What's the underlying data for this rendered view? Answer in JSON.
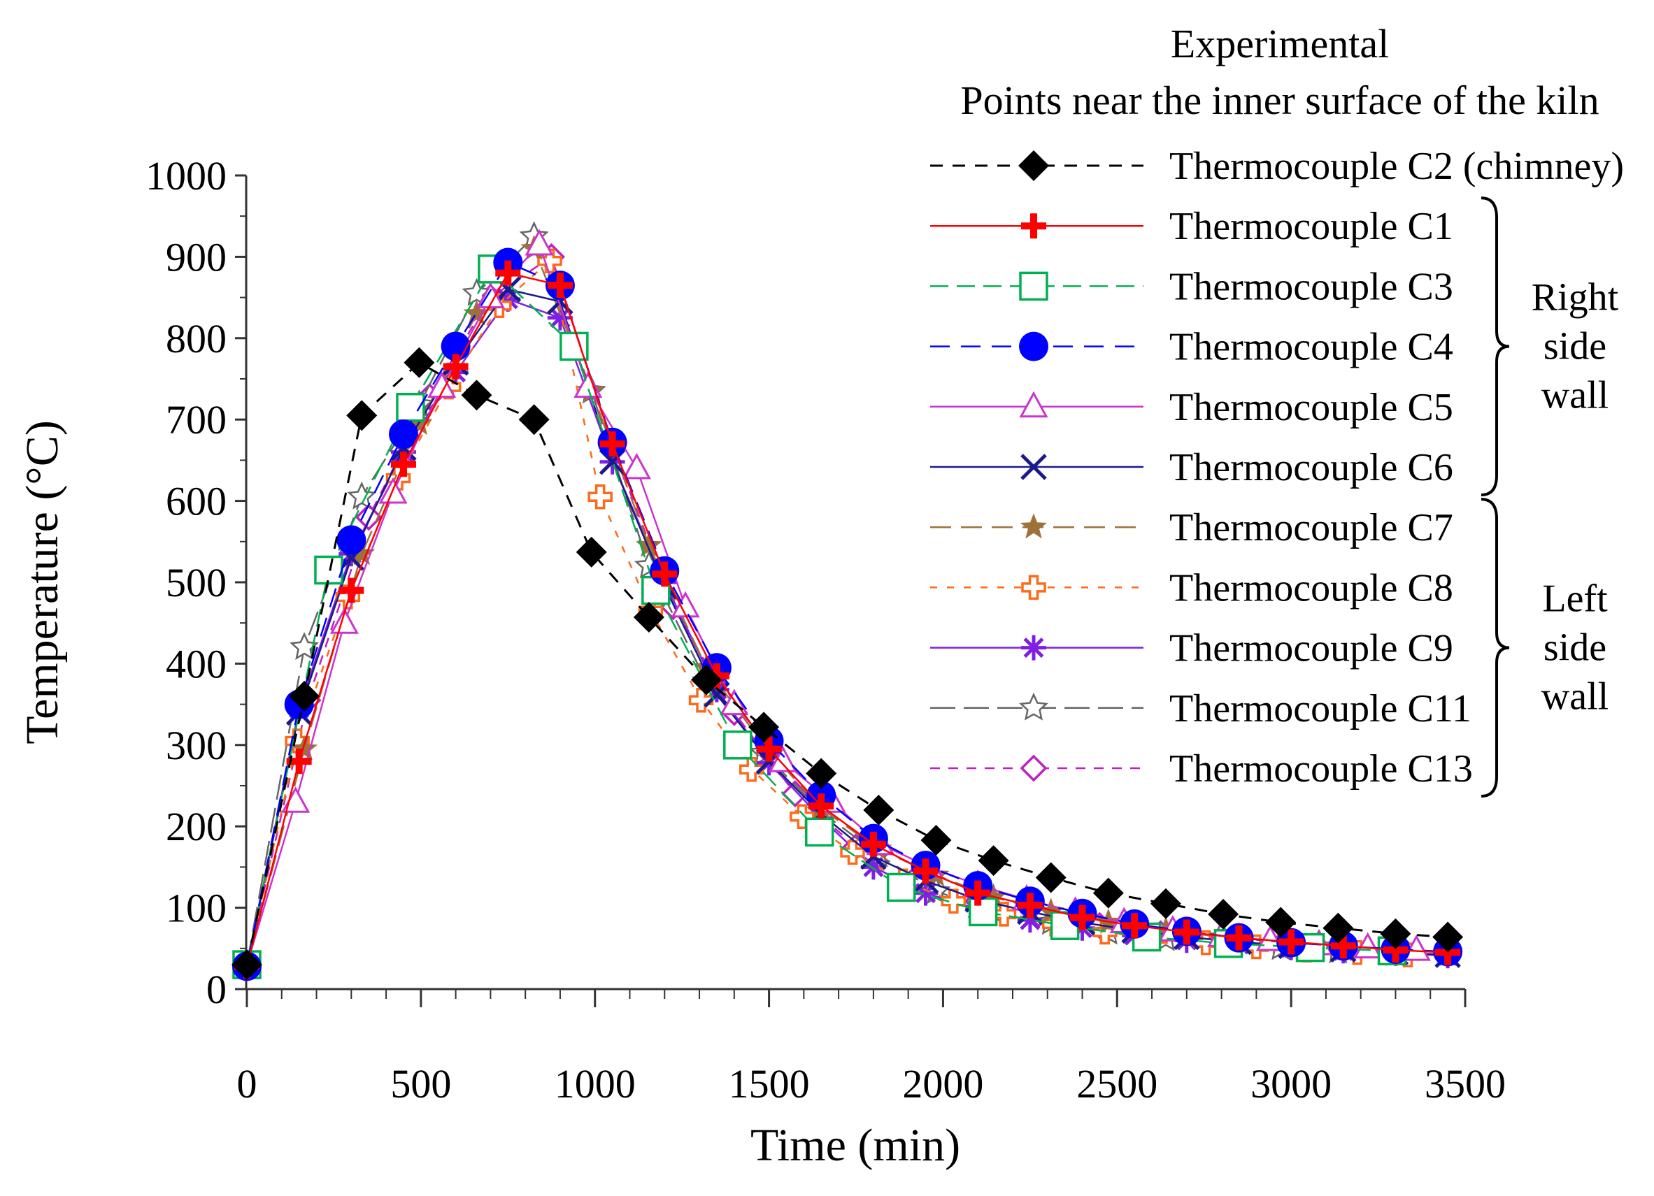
{
  "chart_data": {
    "type": "line",
    "title": "",
    "xlabel": "Time (min)",
    "ylabel": "Temperature (°C)",
    "xlim": [
      -50,
      3500
    ],
    "ylim": [
      0,
      1000
    ],
    "xticks": [
      0,
      500,
      1000,
      1500,
      2000,
      2500,
      3000,
      3500
    ],
    "yticks": [
      0,
      100,
      200,
      300,
      400,
      500,
      600,
      700,
      800,
      900,
      1000
    ],
    "legend_title_1": "Experimental",
    "legend_title_2": "Points near the inner surface of the kiln",
    "groups": [
      {
        "label_lines": [
          "Right",
          "side",
          "wall"
        ],
        "series": [
          "Thermocouple C1",
          "Thermocouple C6"
        ]
      },
      {
        "label_lines": [
          "Left",
          "side",
          "wall"
        ],
        "series": [
          "Thermocouple C7",
          "Thermocouple C13"
        ]
      }
    ],
    "series": [
      {
        "name": "Thermocouple C2 (chimney)",
        "color": "#000000",
        "marker": "diamond-filled",
        "dash": "18 14",
        "x": [
          0,
          165,
          330,
          495,
          660,
          825,
          990,
          1155,
          1320,
          1485,
          1650,
          1815,
          1980,
          2145,
          2310,
          2475,
          2640,
          2805,
          2970,
          3135,
          3300,
          3450
        ],
        "y": [
          30,
          360,
          705,
          770,
          730,
          700,
          537,
          457,
          380,
          322,
          265,
          220,
          183,
          158,
          137,
          118,
          105,
          92,
          82,
          75,
          68,
          64
        ]
      },
      {
        "name": "Thermocouple C1",
        "color": "#ff0000",
        "marker": "plus-thick",
        "dash": "",
        "x": [
          0,
          150,
          300,
          450,
          600,
          750,
          900,
          1050,
          1200,
          1350,
          1500,
          1650,
          1800,
          1950,
          2100,
          2250,
          2400,
          2550,
          2700,
          2850,
          3000,
          3150,
          3300,
          3450
        ],
        "y": [
          28,
          280,
          490,
          645,
          765,
          880,
          865,
          670,
          510,
          385,
          295,
          225,
          178,
          145,
          118,
          103,
          88,
          78,
          70,
          63,
          58,
          53,
          48,
          45
        ]
      },
      {
        "name": "Thermocouple C3",
        "color": "#00b050",
        "marker": "square-open",
        "dash": "26 12",
        "x": [
          0,
          235,
          470,
          705,
          940,
          1175,
          1410,
          1645,
          1880,
          2115,
          2350,
          2585,
          2820,
          3055,
          3290
        ],
        "y": [
          30,
          515,
          715,
          885,
          790,
          490,
          300,
          193,
          125,
          95,
          78,
          64,
          56,
          51,
          47
        ]
      },
      {
        "name": "Thermocouple C4",
        "color": "#0000ff",
        "marker": "circle-filled",
        "dash": "28 16",
        "x": [
          0,
          150,
          300,
          450,
          600,
          750,
          900,
          1050,
          1200,
          1350,
          1500,
          1650,
          1800,
          1950,
          2100,
          2250,
          2400,
          2550,
          2700,
          2850,
          3000,
          3150,
          3300,
          3450
        ],
        "y": [
          28,
          350,
          552,
          682,
          790,
          893,
          865,
          672,
          514,
          395,
          305,
          238,
          185,
          152,
          127,
          108,
          93,
          80,
          71,
          63,
          57,
          53,
          49,
          46
        ]
      },
      {
        "name": "Thermocouple C5",
        "color": "#cc33cc",
        "marker": "triangle-open",
        "dash": "",
        "x": [
          0,
          140,
          280,
          420,
          560,
          700,
          840,
          980,
          1120,
          1260,
          1400,
          1540,
          1680,
          1820,
          1960,
          2100,
          2240,
          2380,
          2520,
          2660,
          2800,
          2940,
          3080,
          3220,
          3360
        ],
        "y": [
          30,
          230,
          450,
          610,
          740,
          850,
          915,
          740,
          640,
          470,
          350,
          280,
          230,
          178,
          150,
          128,
          110,
          95,
          82,
          72,
          65,
          60,
          55,
          51,
          48
        ]
      },
      {
        "name": "Thermocouple C6",
        "color": "#1a1a8c",
        "marker": "x-cross",
        "dash": "",
        "x": [
          0,
          150,
          300,
          450,
          600,
          750,
          900,
          1050,
          1200,
          1350,
          1500,
          1650,
          1800,
          1950,
          2100,
          2250,
          2400,
          2550,
          2700,
          2850,
          3000,
          3150,
          3300,
          3450
        ],
        "y": [
          28,
          340,
          530,
          665,
          770,
          860,
          845,
          648,
          495,
          362,
          280,
          215,
          163,
          133,
          110,
          95,
          82,
          72,
          64,
          58,
          53,
          49,
          45,
          42
        ]
      },
      {
        "name": "Thermocouple C7",
        "color": "#a0703a",
        "marker": "star-filled",
        "dash": "30 14",
        "x": [
          0,
          165,
          330,
          495,
          660,
          825,
          990,
          1155,
          1320,
          1485,
          1650,
          1815,
          1980,
          2145,
          2310,
          2475,
          2640,
          2805,
          2970,
          3135,
          3300
        ],
        "y": [
          30,
          295,
          535,
          695,
          830,
          910,
          735,
          545,
          395,
          300,
          222,
          172,
          140,
          113,
          95,
          82,
          72,
          64,
          58,
          53,
          49
        ]
      },
      {
        "name": "Thermocouple C8",
        "color": "#ff6a1a",
        "marker": "plus-open",
        "dash": "10 14",
        "x": [
          0,
          145,
          290,
          435,
          580,
          725,
          870,
          1015,
          1160,
          1305,
          1450,
          1595,
          1740,
          1885,
          2030,
          2175,
          2320,
          2465,
          2610,
          2755,
          2900,
          3045,
          3190,
          3335
        ],
        "y": [
          30,
          305,
          482,
          628,
          740,
          840,
          895,
          605,
          465,
          355,
          270,
          212,
          168,
          133,
          108,
          92,
          80,
          70,
          62,
          57,
          52,
          48,
          45,
          42
        ]
      },
      {
        "name": "Thermocouple C9",
        "color": "#7f20e0",
        "marker": "asterisk",
        "dash": "",
        "x": [
          0,
          150,
          300,
          450,
          600,
          750,
          900,
          1050,
          1200,
          1350,
          1500,
          1650,
          1800,
          1950,
          2100,
          2250,
          2400,
          2550,
          2700,
          2850,
          3000,
          3150,
          3300,
          3450
        ],
        "y": [
          28,
          345,
          535,
          660,
          758,
          848,
          825,
          648,
          500,
          368,
          278,
          210,
          150,
          118,
          98,
          85,
          75,
          66,
          60,
          55,
          51,
          47,
          44,
          41
        ]
      },
      {
        "name": "Thermocouple C11",
        "color": "#666666",
        "marker": "star-open",
        "dash": "36 12",
        "x": [
          0,
          165,
          330,
          495,
          660,
          825,
          990,
          1155,
          1320,
          1485,
          1650,
          1815,
          1980,
          2145,
          2310,
          2475,
          2640,
          2805,
          2970,
          3135,
          3300
        ],
        "y": [
          30,
          420,
          605,
          718,
          855,
          925,
          735,
          520,
          378,
          290,
          218,
          165,
          120,
          96,
          82,
          70,
          62,
          56,
          51,
          47,
          44
        ]
      },
      {
        "name": "Thermocouple C13",
        "color": "#bf20bf",
        "marker": "diamond-open",
        "dash": "14 12",
        "x": [
          0,
          175,
          350,
          525,
          700,
          875,
          1050,
          1225,
          1400,
          1575,
          1750,
          1925,
          2100,
          2275,
          2450,
          2625,
          2800,
          2975,
          3150,
          3325
        ],
        "y": [
          30,
          355,
          580,
          728,
          850,
          900,
          668,
          470,
          340,
          240,
          175,
          138,
          108,
          92,
          78,
          68,
          61,
          56,
          51,
          47
        ]
      }
    ]
  }
}
